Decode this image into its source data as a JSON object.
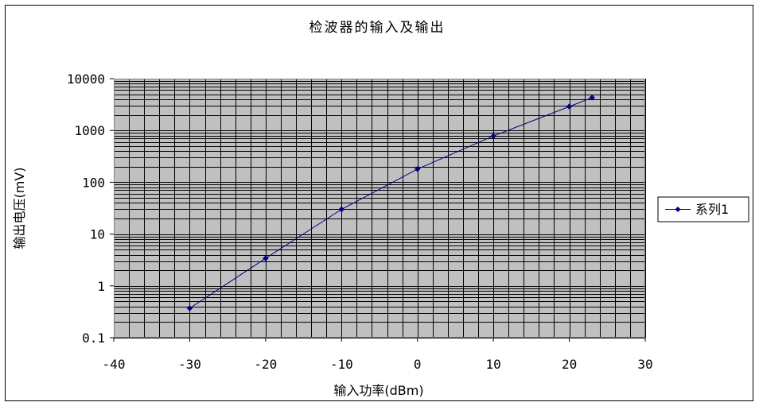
{
  "chart_data": {
    "type": "line",
    "title": "检波器的输入及输出",
    "xlabel": "输入功率(dBm)",
    "ylabel": "输出电压(mV)",
    "x_scale": "linear",
    "y_scale": "log",
    "xlim": [
      -40,
      30
    ],
    "ylim": [
      0.1,
      10000
    ],
    "x_ticks": [
      -40,
      -30,
      -20,
      -10,
      0,
      10,
      20,
      30
    ],
    "x_tick_labels": [
      "-40",
      "-30",
      "-20",
      "-10",
      "0",
      "10",
      "20",
      "30"
    ],
    "y_ticks": [
      0.1,
      1,
      10,
      100,
      1000,
      10000
    ],
    "y_tick_labels": [
      "0.1",
      "1",
      "10",
      "100",
      "1000",
      "10000"
    ],
    "grid": true,
    "plot_background": "#c0c0c0",
    "legend_position": "right",
    "series": [
      {
        "name": "系列1",
        "color": "#000080",
        "marker": "diamond",
        "x": [
          -30,
          -20,
          -10,
          0,
          10,
          20,
          23
        ],
        "y": [
          0.37,
          3.4,
          30,
          180,
          780,
          2900,
          4300
        ]
      }
    ]
  }
}
